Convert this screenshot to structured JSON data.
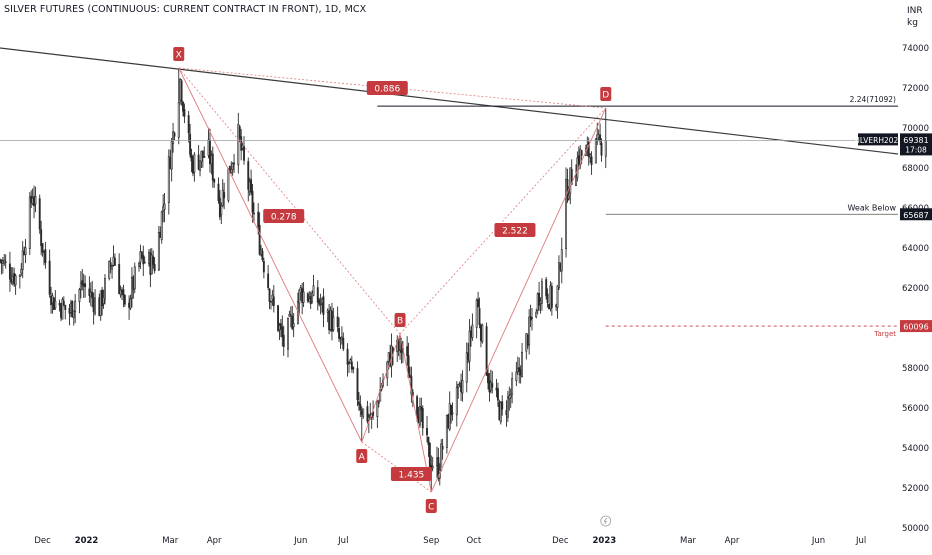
{
  "header": {
    "title": "SILVER FUTURES (CONTINUOUS: CURRENT CONTRACT IN FRONT), 1D, MCX",
    "currency": "INR",
    "unit": "kg"
  },
  "colors": {
    "up": "#2b2b2b",
    "down": "#2b2b2b",
    "pattern_label": "#c53a3e",
    "pattern_line": "#e07a7e",
    "trendline": "#3a3a3a",
    "level_line": "#555555",
    "target_line": "#c53a3e",
    "price_tag": "#131722"
  },
  "chart_data": {
    "type": "candlestick",
    "title": "SILVER FUTURES (CONTINUOUS: CURRENT CONTRACT IN FRONT), 1D, MCX",
    "ylim": [
      50000,
      75500
    ],
    "y_ticks": [
      50000,
      52000,
      54000,
      56000,
      58000,
      60000,
      62000,
      64000,
      66000,
      68000,
      70000,
      72000,
      74000
    ],
    "x_ticks": [
      "Dec",
      "2022",
      "Mar",
      "Apr",
      "Jun",
      "Jul",
      "Sep",
      "Oct",
      "Dec",
      "2023",
      "Mar",
      "Apr",
      "Jun",
      "Jul"
    ],
    "x_tick_dates": [
      "2021-12-01",
      "2022-01-01",
      "2022-03-01",
      "2022-04-01",
      "2022-06-01",
      "2022-07-01",
      "2022-09-01",
      "2022-10-01",
      "2022-12-01",
      "2023-01-01",
      "2023-03-01",
      "2023-04-01",
      "2023-06-01",
      "2023-07-01"
    ],
    "xlim": [
      "2021-11-01",
      "2023-07-27"
    ],
    "price_path": [
      {
        "d": "2021-11-01",
        "p": 63400
      },
      {
        "d": "2021-11-14",
        "p": 62400
      },
      {
        "d": "2021-11-24",
        "p": 66800
      },
      {
        "d": "2021-12-08",
        "p": 61400
      },
      {
        "d": "2021-12-20",
        "p": 60800
      },
      {
        "d": "2021-12-29",
        "p": 62200
      },
      {
        "d": "2022-01-10",
        "p": 61000
      },
      {
        "d": "2022-01-20",
        "p": 63600
      },
      {
        "d": "2022-01-28",
        "p": 60800
      },
      {
        "d": "2022-02-08",
        "p": 63400
      },
      {
        "d": "2022-02-18",
        "p": 63200
      },
      {
        "d": "2022-03-01",
        "p": 68600
      },
      {
        "d": "2022-03-08",
        "p": 72400
      },
      {
        "d": "2022-03-16",
        "p": 68200
      },
      {
        "d": "2022-03-28",
        "p": 68800
      },
      {
        "d": "2022-04-05",
        "p": 66200
      },
      {
        "d": "2022-04-18",
        "p": 69600
      },
      {
        "d": "2022-04-28",
        "p": 66000
      },
      {
        "d": "2022-05-12",
        "p": 61200
      },
      {
        "d": "2022-05-20",
        "p": 59200
      },
      {
        "d": "2022-06-01",
        "p": 61800
      },
      {
        "d": "2022-06-13",
        "p": 61400
      },
      {
        "d": "2022-06-24",
        "p": 60200
      },
      {
        "d": "2022-07-06",
        "p": 57800
      },
      {
        "d": "2022-07-15",
        "p": 55800
      },
      {
        "d": "2022-07-22",
        "p": 55400
      },
      {
        "d": "2022-07-28",
        "p": 57200
      },
      {
        "d": "2022-08-04",
        "p": 58800
      },
      {
        "d": "2022-08-12",
        "p": 59000
      },
      {
        "d": "2022-08-22",
        "p": 56200
      },
      {
        "d": "2022-08-31",
        "p": 53400
      },
      {
        "d": "2022-09-06",
        "p": 53000
      },
      {
        "d": "2022-09-14",
        "p": 55800
      },
      {
        "d": "2022-09-22",
        "p": 56800
      },
      {
        "d": "2022-10-03",
        "p": 61400
      },
      {
        "d": "2022-10-12",
        "p": 57200
      },
      {
        "d": "2022-10-21",
        "p": 55600
      },
      {
        "d": "2022-11-01",
        "p": 57600
      },
      {
        "d": "2022-11-10",
        "p": 60200
      },
      {
        "d": "2022-11-18",
        "p": 62200
      },
      {
        "d": "2022-11-28",
        "p": 61000
      },
      {
        "d": "2022-12-05",
        "p": 66800
      },
      {
        "d": "2022-12-14",
        "p": 68600
      },
      {
        "d": "2022-12-23",
        "p": 68800
      },
      {
        "d": "2023-01-02",
        "p": 69381
      }
    ],
    "pattern": {
      "name": "XABCD",
      "points": [
        {
          "label": "X",
          "d": "2022-03-07",
          "p": 73000
        },
        {
          "label": "A",
          "d": "2022-07-14",
          "p": 54300
        },
        {
          "label": "B",
          "d": "2022-08-10",
          "p": 59700
        },
        {
          "label": "C",
          "d": "2022-09-01",
          "p": 51800
        },
        {
          "label": "D",
          "d": "2023-01-02",
          "p": 71000
        }
      ],
      "ratios": [
        {
          "label": "0.886",
          "from": "X",
          "to": "D",
          "at": {
            "d": "2022-08-01",
            "p": 72000
          }
        },
        {
          "label": "0.278",
          "from": "X",
          "to": "B",
          "at": {
            "d": "2022-05-20",
            "p": 65600
          }
        },
        {
          "label": "1.435",
          "from": "A",
          "to": "C",
          "at": {
            "d": "2022-08-18",
            "p": 52700
          }
        },
        {
          "label": "2.522",
          "from": "B",
          "to": "D",
          "at": {
            "d": "2022-10-30",
            "p": 64900
          }
        }
      ]
    },
    "trendline": {
      "start": {
        "d": "2021-11-01",
        "p": 74000
      },
      "end": {
        "d": "2023-07-27",
        "p": 68700
      }
    },
    "levels": [
      {
        "name": "extension",
        "value": 71092,
        "label": "2.24(71092)",
        "from": "2022-07-25"
      },
      {
        "name": "weak-below",
        "value": 65687,
        "label": "Weak Below",
        "tag": "65687",
        "from": "2023-01-02"
      },
      {
        "name": "target",
        "value": 60096,
        "label": "Target",
        "tag": "60096",
        "from": "2023-01-02",
        "dashed": true
      }
    ],
    "last_price": {
      "symbol": "SILVERH2023",
      "value": 69381,
      "tag": "69381",
      "countdown": "17:08"
    }
  }
}
